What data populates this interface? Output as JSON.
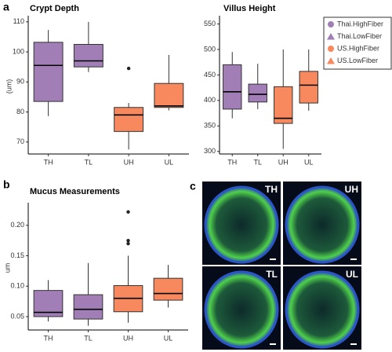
{
  "chart_data": [
    {
      "type": "box",
      "panel_label": "a",
      "title": "Crypt Depth",
      "y_label": "(um)",
      "categories": [
        "TH",
        "TL",
        "UH",
        "UL"
      ],
      "colors": [
        "#a17fb6",
        "#a17fb6",
        "#f8895e",
        "#f8895e"
      ],
      "stats": [
        {
          "whislo": 78.6,
          "q1": 83.5,
          "med": 95.5,
          "q3": 103.2,
          "whishi": 107.3,
          "fliers": []
        },
        {
          "whislo": 93.3,
          "q1": 95,
          "med": 97,
          "q3": 102.5,
          "whishi": 110,
          "fliers": []
        },
        {
          "whislo": 67.5,
          "q1": 73.5,
          "med": 79,
          "q3": 81.5,
          "whishi": 83,
          "fliers": [
            94.5
          ]
        },
        {
          "whislo": 80.5,
          "q1": 81.5,
          "med": 82,
          "q3": 89.5,
          "whishi": 99,
          "fliers": []
        }
      ],
      "ylim": [
        66,
        111
      ],
      "yticks": [
        70,
        80,
        90,
        100,
        110
      ]
    },
    {
      "type": "box",
      "title": "Villus Height",
      "categories": [
        "TH",
        "TL",
        "UH",
        "UL"
      ],
      "colors": [
        "#a17fb6",
        "#a17fb6",
        "#f8895e",
        "#f8895e"
      ],
      "stats": [
        {
          "whislo": 365,
          "q1": 383,
          "med": 417,
          "q3": 470,
          "whishi": 495,
          "fliers": []
        },
        {
          "whislo": 383,
          "q1": 397,
          "med": 412,
          "q3": 432,
          "whishi": 472,
          "fliers": []
        },
        {
          "whislo": 305,
          "q1": 355,
          "med": 365,
          "q3": 427,
          "whishi": 500,
          "fliers": []
        },
        {
          "whislo": 380,
          "q1": 395,
          "med": 430,
          "q3": 457,
          "whishi": 500,
          "fliers": []
        }
      ],
      "ylim": [
        295,
        560
      ],
      "yticks": [
        300,
        350,
        400,
        450,
        500,
        550
      ],
      "legend": [
        {
          "name": "Thai.HighFiber",
          "color": "#a17fb6",
          "marker": "circle"
        },
        {
          "name": "Thai.LowFiber",
          "color": "#a17fb6",
          "marker": "triangle"
        },
        {
          "name": "US.HighFiber",
          "color": "#f8895e",
          "marker": "circle"
        },
        {
          "name": "US.LowFiber",
          "color": "#f8895e",
          "marker": "triangle"
        }
      ]
    },
    {
      "type": "box",
      "panel_label": "b",
      "title": "Mucus Measurements",
      "y_label": "um",
      "categories": [
        "TH",
        "TL",
        "UH",
        "UL"
      ],
      "colors": [
        "#a17fb6",
        "#a17fb6",
        "#f8895e",
        "#f8895e"
      ],
      "stats": [
        {
          "whislo": 0.042,
          "q1": 0.05,
          "med": 0.057,
          "q3": 0.093,
          "whishi": 0.11,
          "fliers": []
        },
        {
          "whislo": 0.035,
          "q1": 0.046,
          "med": 0.062,
          "q3": 0.086,
          "whishi": 0.138,
          "fliers": []
        },
        {
          "whislo": 0.04,
          "q1": 0.058,
          "med": 0.08,
          "q3": 0.101,
          "whishi": 0.15,
          "fliers": [
            0.222,
            0.175,
            0.17
          ]
        },
        {
          "whislo": 0.065,
          "q1": 0.077,
          "med": 0.088,
          "q3": 0.113,
          "whishi": 0.135,
          "fliers": []
        }
      ],
      "ylim": [
        0.028,
        0.232
      ],
      "yticks": [
        {
          "value": 0.05,
          "label": "0.05"
        },
        {
          "value": 0.1,
          "label": "0.10"
        },
        0.15,
        {
          "value": 0.2,
          "label": "0.20"
        }
      ]
    }
  ],
  "micrographs": {
    "panel_label": "c",
    "tiles": [
      {
        "label": "TH"
      },
      {
        "label": "UH"
      },
      {
        "label": "TL"
      },
      {
        "label": "UL"
      }
    ]
  }
}
